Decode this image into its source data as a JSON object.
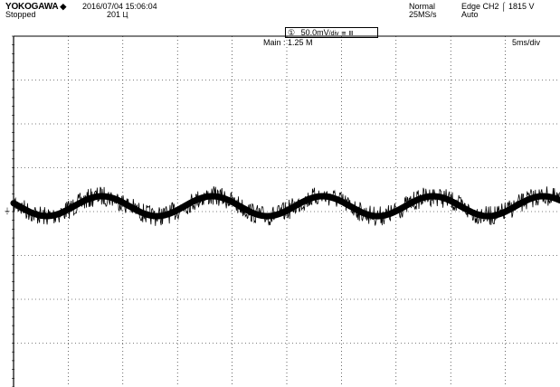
{
  "header": {
    "brand": "YOKOGAWA",
    "brand_icon": "diamond-icon",
    "status": "Stopped",
    "datetime": "2016/07/04 15:06:04",
    "acq_count": "201",
    "acq_icon": "acquisition-icon",
    "trigger_mode": "Normal",
    "sample_rate": "25MS/s",
    "trigger_source": "Edge CH2",
    "trigger_edge_icon": "rising-edge-icon",
    "trigger_level": "1815 V",
    "trigger_mode_auto": "Auto"
  },
  "channel": {
    "number_icon": "channel-1-icon",
    "vdiv": "50.0mV",
    "unit": "/div",
    "coupling_icon": "ac-coupling-icon",
    "bw_icon": "bandwidth-limit-icon"
  },
  "main_label": "Main : 1.25 M",
  "time_div": "5ms/div",
  "colors": {
    "trace": "#000000",
    "grid": "#000000",
    "background": "#ffffff"
  },
  "ground_marker_icon": "ground-marker-icon"
}
